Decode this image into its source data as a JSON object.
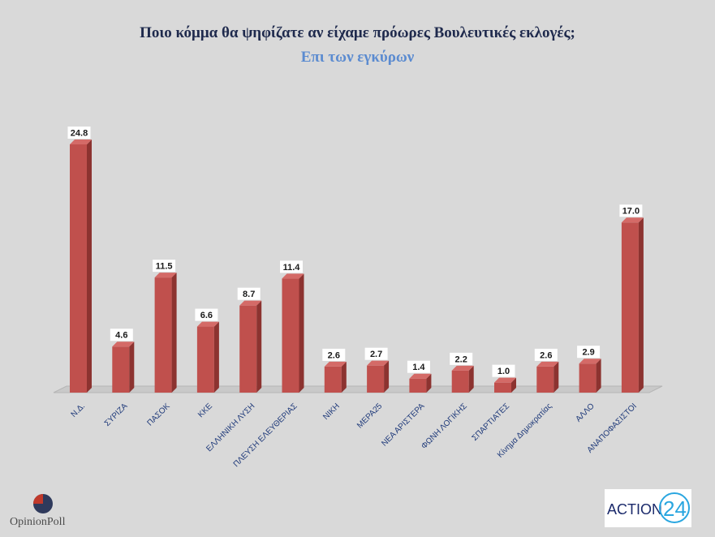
{
  "header": {
    "title": "Ποιο κόμμα θα ψηφίζατε αν είχαμε πρόωρες Βουλευτικές εκλογές;",
    "subtitle": "Επι των εγκύρων"
  },
  "logos": {
    "left_text": "OpinionPoll",
    "right_text": "ACTION",
    "right_number": "24"
  },
  "colors": {
    "bar_front": "#c0504d",
    "bar_side": "#8c3330",
    "bar_top": "#d46a67",
    "background": "#d9d9d9"
  },
  "chart_data": {
    "type": "bar",
    "categories": [
      "Ν.Δ.",
      "ΣΥΡΙΖΑ",
      "ΠΑΣΟΚ",
      "ΚΚΕ",
      "ΕΛΛΗΝΙΚΗ ΛΥΣΗ",
      "ΠΛΕΥΣΗ ΕΛΕΥΘΕΡΙΑΣ",
      "ΝΙΚΗ",
      "ΜΕΡΑ25",
      "ΝΕΑ ΑΡΙΣΤΕΡΑ",
      "ΦΩΝΗ ΛΟΓΙΚΗΣ",
      "ΣΠΑΡΤΙΑΤΕΣ",
      "Κίνημα Δημοκρατίας",
      "ΑΛΛΟ",
      "ΑΝΑΠΟΦΑΣΙΣΤΟΙ"
    ],
    "values": [
      24.8,
      4.6,
      11.5,
      6.6,
      8.7,
      11.4,
      2.6,
      2.7,
      1.4,
      2.2,
      1.0,
      2.6,
      2.9,
      17.0
    ],
    "labels": [
      "24.8",
      "4.6",
      "11.5",
      "6.6",
      "8.7",
      "11.4",
      "2.6",
      "2.7",
      "1.4",
      "2.2",
      "1.0",
      "2.6",
      "2.9",
      "17.0"
    ],
    "title": "Ποιο κόμμα θα ψηφίζατε αν είχαμε πρόωρες Βουλευτικές εκλογές;",
    "subtitle": "Επι των εγκύρων",
    "ylim": [
      0,
      25
    ],
    "grid": false,
    "legend": "none"
  }
}
